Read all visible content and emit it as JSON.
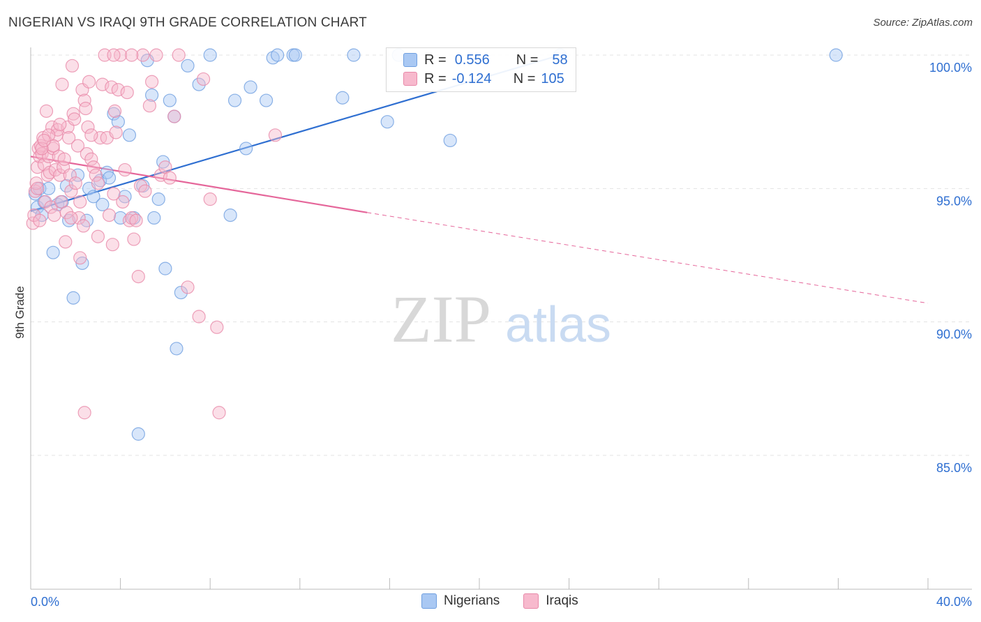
{
  "title": "NIGERIAN VS IRAQI 9TH GRADE CORRELATION CHART",
  "source": "Source: ZipAtlas.com",
  "watermark": {
    "zip": "ZIP",
    "atlas": "atlas"
  },
  "legend": {
    "rows": [
      {
        "r_label": "R =",
        "r_value": "0.556",
        "n_label": "N =",
        "n_value": "58",
        "color": "#a9c8f3",
        "border": "#6f9fe0"
      },
      {
        "r_label": "R =",
        "r_value": "-0.124",
        "n_label": "N =",
        "n_value": "105",
        "color": "#f7b9cd",
        "border": "#e889a9"
      }
    ]
  },
  "bottom_legend": [
    {
      "label": "Nigerians",
      "color": "#a9c8f3",
      "border": "#6f9fe0"
    },
    {
      "label": "Iraqis",
      "color": "#f7b9cd",
      "border": "#e889a9"
    }
  ],
  "chart_data": {
    "type": "scatter",
    "title": "NIGERIAN VS IRAQI 9TH GRADE CORRELATION CHART",
    "xlabel": "",
    "ylabel": "9th Grade",
    "xlim": [
      0,
      40
    ],
    "ylim": [
      80.5,
      100.6
    ],
    "x_tick_labels": [
      "0.0%",
      "40.0%"
    ],
    "y_ticks": [
      100,
      95,
      90,
      85
    ],
    "y_tick_labels": [
      "100.0%",
      "95.0%",
      "90.0%",
      "85.0%"
    ],
    "grid": true,
    "series": [
      {
        "name": "Nigerians",
        "color": "#6f9fe0",
        "fill": "#a9c8f3",
        "points": [
          [
            0.2,
            94.8
          ],
          [
            0.3,
            94.3
          ],
          [
            0.4,
            95.0
          ],
          [
            0.5,
            94.0
          ],
          [
            0.6,
            94.5
          ],
          [
            0.8,
            95.0
          ],
          [
            1.0,
            92.6
          ],
          [
            1.2,
            94.4
          ],
          [
            1.4,
            94.5
          ],
          [
            1.6,
            95.1
          ],
          [
            1.7,
            93.8
          ],
          [
            1.9,
            90.9
          ],
          [
            2.1,
            95.5
          ],
          [
            2.3,
            92.2
          ],
          [
            2.5,
            93.8
          ],
          [
            2.6,
            95.0
          ],
          [
            2.8,
            94.7
          ],
          [
            3.1,
            95.3
          ],
          [
            3.2,
            94.4
          ],
          [
            3.4,
            95.6
          ],
          [
            3.5,
            95.4
          ],
          [
            3.7,
            97.8
          ],
          [
            3.9,
            97.5
          ],
          [
            4.0,
            93.9
          ],
          [
            4.2,
            94.7
          ],
          [
            4.4,
            97.0
          ],
          [
            4.6,
            93.9
          ],
          [
            4.8,
            85.8
          ],
          [
            5.0,
            95.1
          ],
          [
            5.2,
            99.8
          ],
          [
            5.4,
            98.5
          ],
          [
            5.5,
            93.9
          ],
          [
            5.7,
            94.6
          ],
          [
            5.9,
            96.0
          ],
          [
            6.0,
            92.0
          ],
          [
            6.2,
            98.3
          ],
          [
            6.4,
            97.7
          ],
          [
            6.5,
            89.0
          ],
          [
            6.7,
            91.1
          ],
          [
            7.0,
            99.6
          ],
          [
            7.5,
            98.9
          ],
          [
            8.0,
            100.0
          ],
          [
            8.9,
            94.0
          ],
          [
            9.1,
            98.3
          ],
          [
            9.6,
            96.5
          ],
          [
            9.8,
            98.8
          ],
          [
            10.5,
            98.3
          ],
          [
            10.8,
            99.9
          ],
          [
            11.0,
            100.0
          ],
          [
            11.7,
            100.0
          ],
          [
            11.8,
            100.0
          ],
          [
            14.4,
            100.0
          ],
          [
            13.9,
            98.4
          ],
          [
            15.9,
            97.5
          ],
          [
            16.4,
            100.0
          ],
          [
            18.7,
            96.8
          ],
          [
            23.6,
            100.0
          ],
          [
            35.9,
            100.0
          ]
        ]
      },
      {
        "name": "Iraqis",
        "color": "#e889a9",
        "fill": "#f7b9cd",
        "points": [
          [
            0.1,
            93.7
          ],
          [
            0.15,
            94.0
          ],
          [
            0.2,
            94.9
          ],
          [
            0.25,
            95.2
          ],
          [
            0.3,
            95.8
          ],
          [
            0.35,
            96.5
          ],
          [
            0.4,
            96.2
          ],
          [
            0.45,
            96.6
          ],
          [
            0.5,
            96.3
          ],
          [
            0.55,
            96.9
          ],
          [
            0.6,
            95.9
          ],
          [
            0.65,
            94.5
          ],
          [
            0.7,
            97.9
          ],
          [
            0.75,
            95.5
          ],
          [
            0.8,
            96.2
          ],
          [
            0.85,
            95.6
          ],
          [
            0.9,
            94.3
          ],
          [
            0.95,
            97.3
          ],
          [
            1.0,
            96.5
          ],
          [
            1.05,
            94.0
          ],
          [
            1.1,
            95.7
          ],
          [
            1.15,
            97.0
          ],
          [
            1.2,
            97.2
          ],
          [
            1.25,
            96.2
          ],
          [
            1.3,
            95.5
          ],
          [
            1.35,
            94.5
          ],
          [
            1.4,
            98.9
          ],
          [
            1.45,
            95.8
          ],
          [
            1.5,
            96.1
          ],
          [
            1.55,
            93.0
          ],
          [
            1.6,
            94.1
          ],
          [
            1.65,
            97.3
          ],
          [
            1.7,
            96.9
          ],
          [
            1.75,
            95.5
          ],
          [
            1.8,
            94.9
          ],
          [
            1.85,
            99.6
          ],
          [
            1.9,
            97.8
          ],
          [
            1.95,
            97.6
          ],
          [
            2.0,
            95.2
          ],
          [
            2.1,
            96.6
          ],
          [
            2.15,
            93.9
          ],
          [
            2.2,
            92.4
          ],
          [
            2.3,
            98.7
          ],
          [
            2.35,
            93.6
          ],
          [
            2.4,
            98.3
          ],
          [
            2.45,
            98.0
          ],
          [
            2.5,
            96.3
          ],
          [
            2.55,
            97.3
          ],
          [
            2.6,
            99.0
          ],
          [
            2.7,
            96.1
          ],
          [
            2.8,
            95.8
          ],
          [
            2.9,
            95.5
          ],
          [
            3.0,
            93.2
          ],
          [
            3.1,
            96.9
          ],
          [
            3.2,
            98.9
          ],
          [
            3.3,
            100.0
          ],
          [
            3.4,
            96.9
          ],
          [
            3.5,
            94.0
          ],
          [
            3.6,
            98.8
          ],
          [
            3.65,
            92.9
          ],
          [
            3.7,
            94.8
          ],
          [
            3.75,
            97.9
          ],
          [
            3.8,
            97.1
          ],
          [
            3.9,
            98.7
          ],
          [
            4.0,
            100.0
          ],
          [
            4.1,
            94.5
          ],
          [
            4.2,
            95.7
          ],
          [
            4.3,
            98.6
          ],
          [
            4.4,
            93.8
          ],
          [
            4.5,
            93.9
          ],
          [
            4.6,
            93.1
          ],
          [
            4.7,
            93.8
          ],
          [
            4.8,
            91.7
          ],
          [
            4.9,
            95.1
          ],
          [
            5.0,
            100.0
          ],
          [
            5.1,
            94.9
          ],
          [
            5.3,
            98.1
          ],
          [
            5.4,
            99.0
          ],
          [
            5.6,
            100.0
          ],
          [
            5.8,
            95.5
          ],
          [
            6.0,
            95.8
          ],
          [
            6.2,
            95.4
          ],
          [
            6.4,
            97.7
          ],
          [
            6.6,
            100.0
          ],
          [
            7.0,
            91.3
          ],
          [
            7.5,
            90.2
          ],
          [
            7.7,
            99.1
          ],
          [
            8.0,
            94.6
          ],
          [
            8.3,
            89.8
          ],
          [
            8.4,
            86.6
          ],
          [
            10.9,
            97.0
          ],
          [
            2.4,
            86.6
          ],
          [
            3.0,
            95.2
          ],
          [
            1.0,
            96.6
          ],
          [
            0.5,
            96.5
          ],
          [
            0.3,
            95.0
          ],
          [
            1.8,
            93.9
          ],
          [
            2.2,
            94.5
          ],
          [
            4.5,
            100.0
          ],
          [
            3.7,
            100.0
          ],
          [
            0.8,
            97.0
          ],
          [
            1.3,
            97.4
          ],
          [
            2.7,
            97.0
          ],
          [
            0.4,
            93.8
          ],
          [
            0.6,
            96.8
          ]
        ]
      }
    ],
    "trend_lines": [
      {
        "series": "Nigerians",
        "x": [
          0.0,
          23.6
        ],
        "y": [
          94.15,
          100.0
        ],
        "style": "solid"
      },
      {
        "series": "Iraqis",
        "x_solid": [
          0.0,
          15.0
        ],
        "y_solid": [
          96.2,
          94.1
        ],
        "x_dashed": [
          15.0,
          40.0
        ],
        "y_dashed": [
          94.1,
          90.7
        ]
      }
    ]
  }
}
